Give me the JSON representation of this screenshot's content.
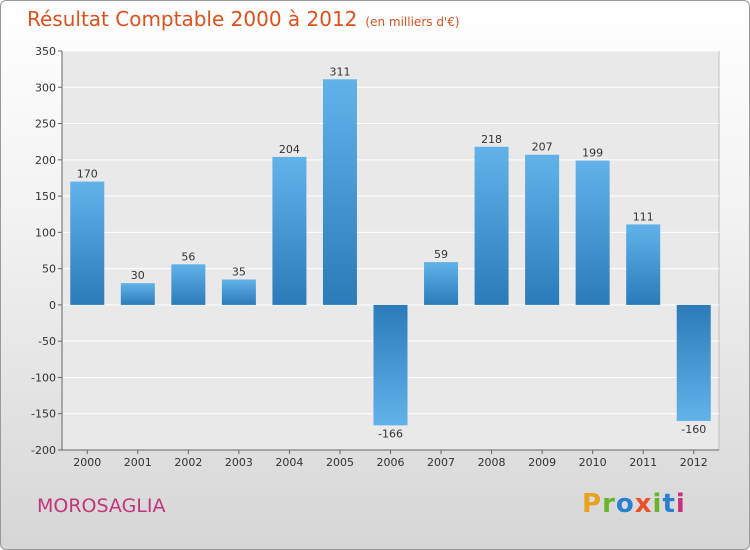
{
  "header": {
    "title": "Résultat Comptable 2000 à 2012",
    "subtitle": "(en milliers d'€)"
  },
  "footer": {
    "commune": "MOROSAGLIA",
    "logo": "Proxiti",
    "logo_colors": [
      "#e8a21d",
      "#6bb32e",
      "#2a7fd0",
      "#e8502a",
      "#6bb32e",
      "#2a7fd0",
      "#c2357a"
    ]
  },
  "colors": {
    "bar_light": "#62b2ea",
    "bar_dark": "#2b7bba",
    "title": "#e0501a",
    "commune": "#c2357a"
  },
  "chart_data": {
    "type": "bar",
    "title": "Résultat Comptable 2000 à 2012",
    "subtitle": "(en milliers d'€)",
    "categories": [
      "2000",
      "2001",
      "2002",
      "2003",
      "2004",
      "2005",
      "2006",
      "2007",
      "2008",
      "2009",
      "2010",
      "2011",
      "2012"
    ],
    "values": [
      170,
      30,
      56,
      35,
      204,
      311,
      -166,
      59,
      218,
      207,
      199,
      111,
      -160
    ],
    "value_labels": [
      "170",
      "30",
      "56",
      "35",
      "204",
      "311",
      "-166",
      "59",
      "218",
      "207",
      "199",
      "111",
      "-160"
    ],
    "ylim": [
      -200,
      350
    ],
    "yticks": [
      -200,
      -150,
      -100,
      -50,
      0,
      50,
      100,
      150,
      200,
      250,
      300,
      350
    ],
    "ytick_labels": [
      "-200",
      "-150",
      "-100",
      "-50",
      "0",
      "50",
      "100",
      "150",
      "200",
      "250",
      "300",
      "350"
    ],
    "grid": true
  }
}
